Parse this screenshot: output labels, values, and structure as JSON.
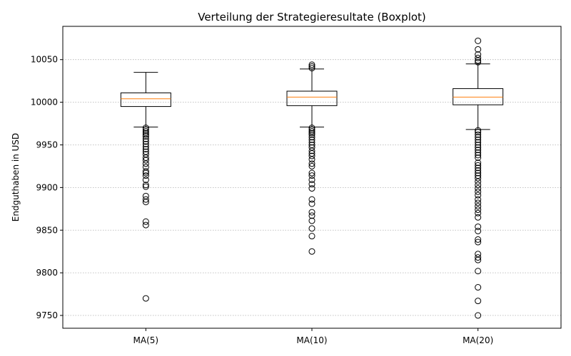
{
  "chart_data": {
    "type": "boxplot",
    "title": "Verteilung der Strategieresultate (Boxplot)",
    "xlabel": "",
    "ylabel": "Endguthaben in USD",
    "ylim": [
      9735,
      10089
    ],
    "yticks": [
      9750,
      9800,
      9850,
      9900,
      9950,
      10000,
      10050
    ],
    "grid": "y",
    "colors": {
      "box": "#000000",
      "median": "#ff7f0e",
      "grid": "#b0b0b0"
    },
    "categories": [
      "MA(5)",
      "MA(10)",
      "MA(20)"
    ],
    "boxes": [
      {
        "label": "MA(5)",
        "whisker_low": 9971,
        "q1": 9995,
        "median": 10004,
        "q3": 10011,
        "whisker_high": 10035,
        "outliers": [
          9770,
          9856,
          9860,
          9883,
          9886,
          9890,
          9901,
          9903,
          9909,
          9914,
          9917,
          9919,
          9924,
          9928,
          9932,
          9935,
          9939,
          9942,
          9945,
          9948,
          9951,
          9954,
          9957,
          9960,
          9962,
          9964,
          9966,
          9968,
          9970
        ]
      },
      {
        "label": "MA(10)",
        "whisker_low": 9971,
        "q1": 9996,
        "median": 10006,
        "q3": 10013,
        "whisker_high": 10039,
        "outliers": [
          9825,
          9843,
          9852,
          9861,
          9867,
          9871,
          9881,
          9886,
          9899,
          9904,
          9909,
          9914,
          9917,
          9925,
          9928,
          9933,
          9937,
          9940,
          9943,
          9947,
          9950,
          9953,
          9956,
          9959,
          9962,
          9964,
          9966,
          9968,
          9970,
          10040,
          10042,
          10044
        ]
      },
      {
        "label": "MA(20)",
        "whisker_low": 9968,
        "q1": 9997,
        "median": 10006,
        "q3": 10016,
        "whisker_high": 10045,
        "outliers": [
          9750,
          9767,
          9783,
          9802,
          9815,
          9818,
          9822,
          9836,
          9839,
          9849,
          9854,
          9865,
          9870,
          9874,
          9878,
          9882,
          9886,
          9891,
          9895,
          9899,
          9903,
          9907,
          9911,
          9914,
          9917,
          9920,
          9923,
          9926,
          9929,
          9935,
          9938,
          9941,
          9944,
          9947,
          9950,
          9953,
          9956,
          9959,
          9962,
          9965,
          9967,
          10047,
          10049,
          10052,
          10056,
          10062,
          10072
        ]
      }
    ]
  }
}
